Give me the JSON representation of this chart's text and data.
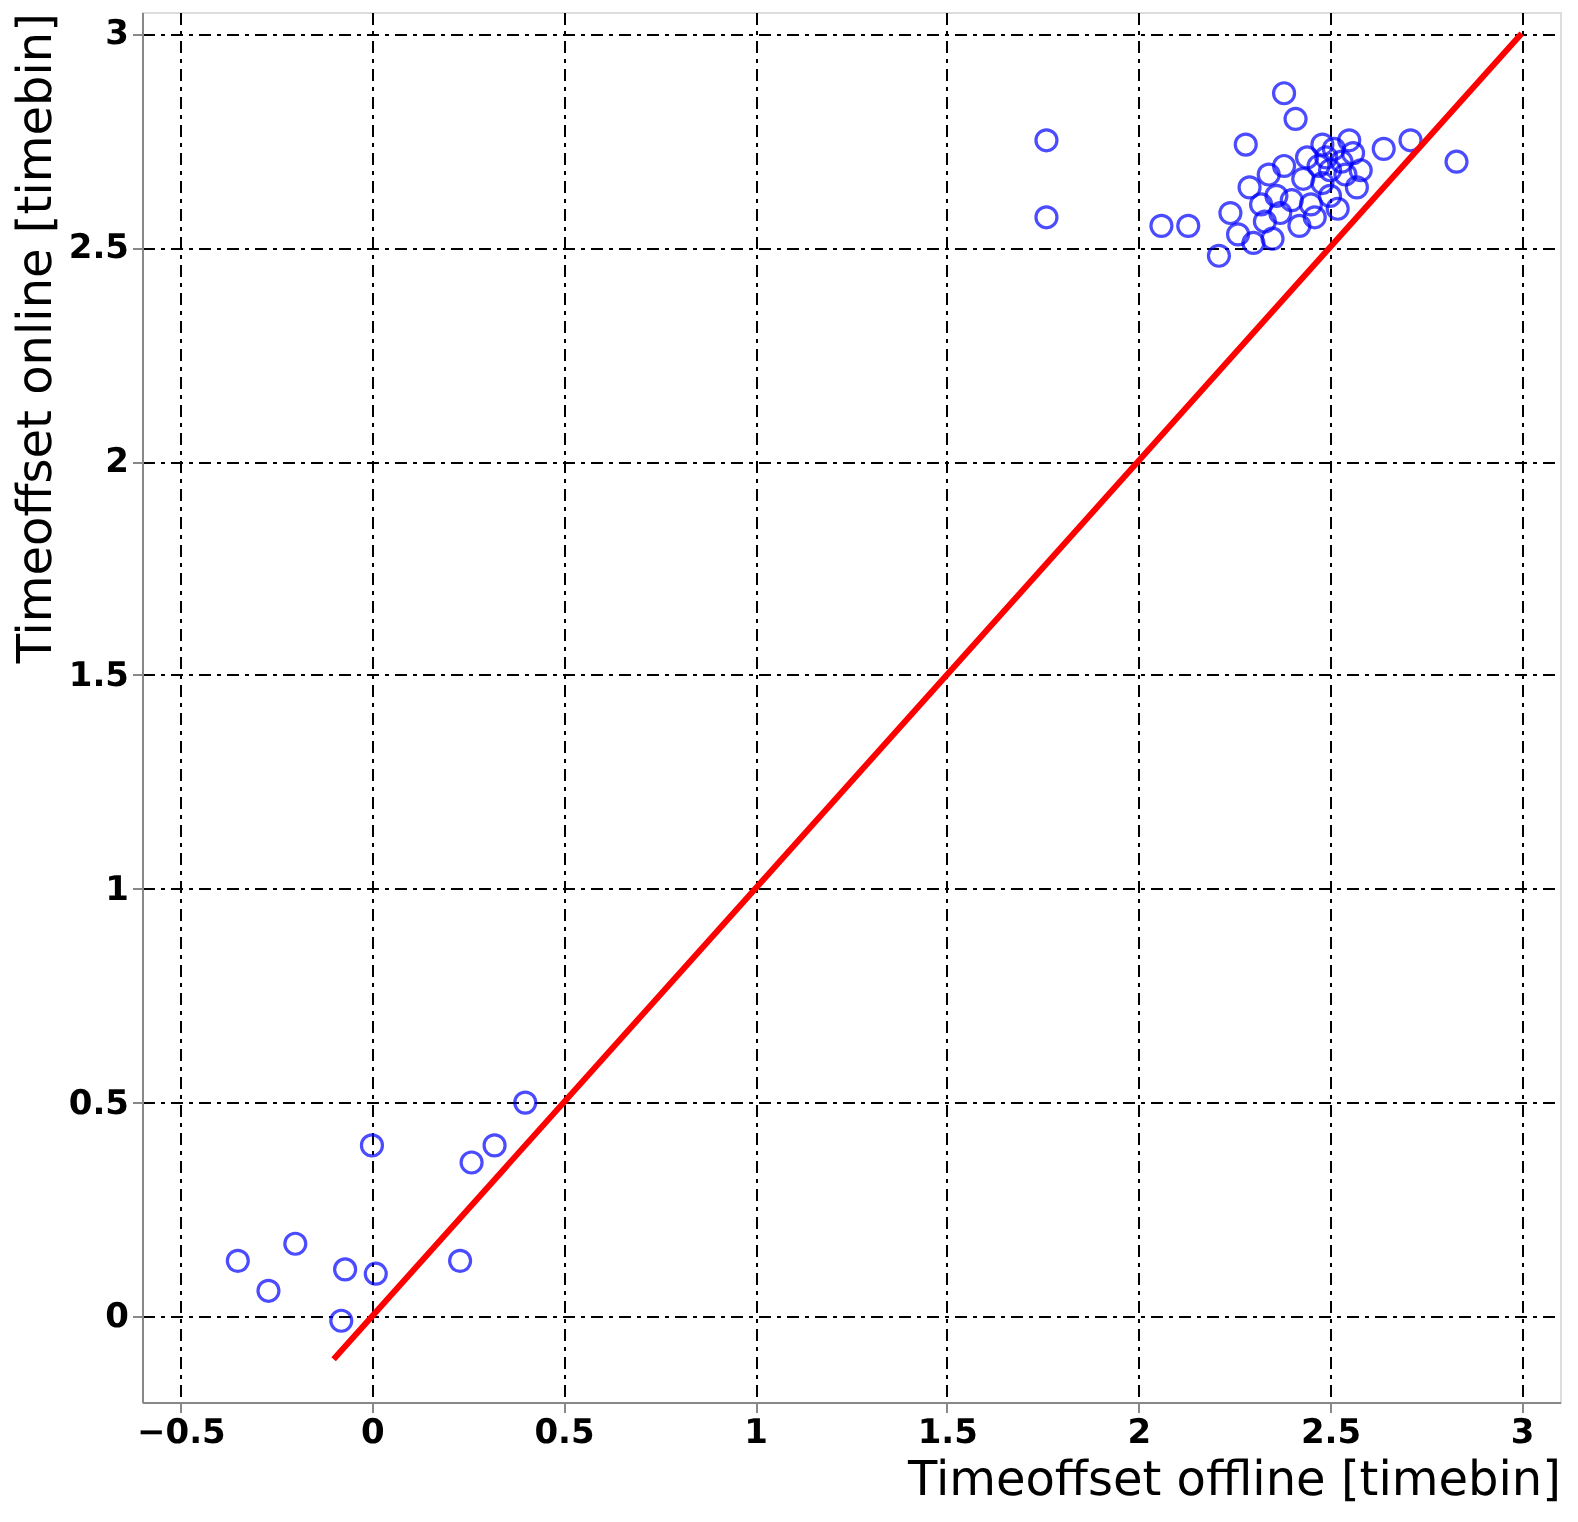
{
  "chart_data": {
    "type": "scatter",
    "xlabel": "Timeoffset offline [timebin]",
    "ylabel": "Timeoffset online [timebin]",
    "xlim": [
      -0.6,
      3.1
    ],
    "ylim": [
      -0.2,
      3.05
    ],
    "xticks": [
      -0.5,
      0,
      0.5,
      1,
      1.5,
      2,
      2.5,
      3
    ],
    "yticks": [
      0,
      0.5,
      1,
      1.5,
      2,
      2.5,
      3
    ],
    "grid": true,
    "series": [
      {
        "type": "scatter",
        "marker": "circle",
        "color": "#0000ff",
        "x": [
          -0.35,
          -0.27,
          -0.2,
          -0.07,
          -0.08,
          0.0,
          0.01,
          0.23,
          0.26,
          0.32,
          0.4,
          1.76,
          1.76,
          2.06,
          2.13,
          2.21,
          2.24,
          2.26,
          2.28,
          2.29,
          2.3,
          2.32,
          2.33,
          2.34,
          2.35,
          2.36,
          2.37,
          2.38,
          2.38,
          2.4,
          2.41,
          2.42,
          2.43,
          2.44,
          2.45,
          2.46,
          2.47,
          2.48,
          2.48,
          2.49,
          2.5,
          2.5,
          2.51,
          2.52,
          2.53,
          2.54,
          2.55,
          2.56,
          2.57,
          2.58,
          2.64,
          2.71,
          2.83
        ],
        "values": [
          0.13,
          0.06,
          0.17,
          0.11,
          -0.01,
          0.4,
          0.1,
          0.13,
          0.36,
          0.4,
          0.5,
          2.75,
          2.57,
          2.55,
          2.55,
          2.48,
          2.58,
          2.53,
          2.74,
          2.64,
          2.51,
          2.6,
          2.56,
          2.67,
          2.52,
          2.62,
          2.58,
          2.86,
          2.69,
          2.61,
          2.8,
          2.55,
          2.66,
          2.71,
          2.6,
          2.57,
          2.69,
          2.74,
          2.65,
          2.71,
          2.62,
          2.68,
          2.73,
          2.59,
          2.7,
          2.67,
          2.75,
          2.72,
          2.64,
          2.68,
          2.73,
          2.75,
          2.7
        ]
      },
      {
        "type": "line",
        "color": "#ff0000",
        "x": [
          -0.1,
          3.0
        ],
        "values": [
          -0.1,
          3.0
        ]
      }
    ]
  }
}
